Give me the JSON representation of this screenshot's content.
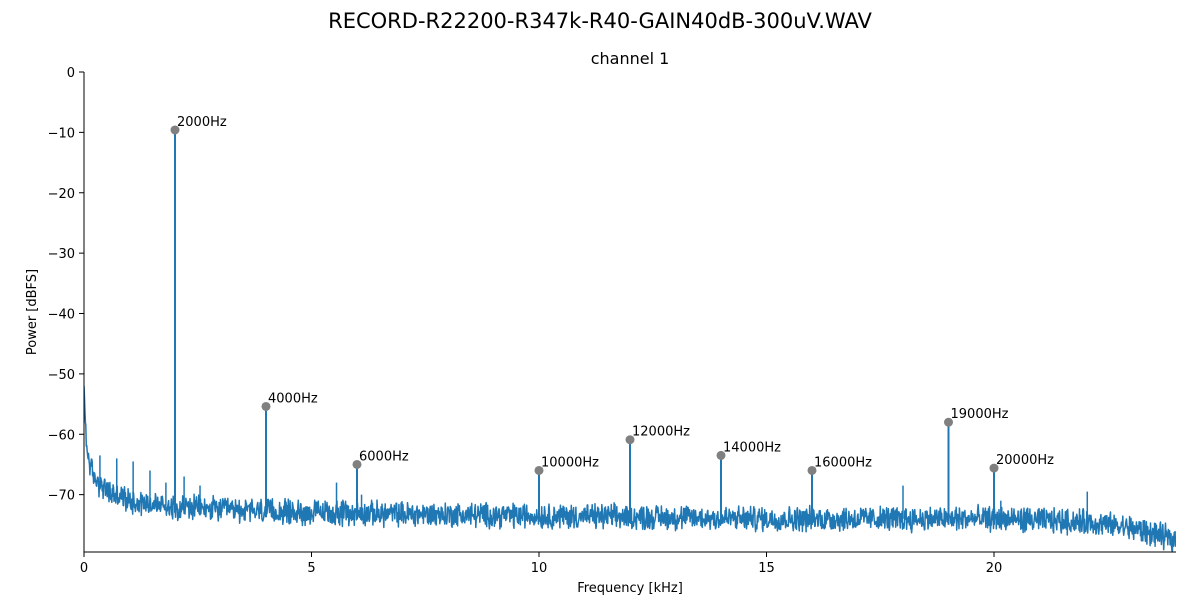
{
  "chart_data": {
    "type": "line",
    "suptitle": "RECORD-R22200-R347k-R40-GAIN40dB-300uV.WAV",
    "title": "channel 1",
    "xlabel": "Frequency [kHz]",
    "ylabel": "Power [dBFS]",
    "xlim": [
      0,
      24
    ],
    "ylim": [
      -79.5,
      0
    ],
    "xticks": [
      0,
      5,
      10,
      15,
      20
    ],
    "xtick_labels": [
      "0",
      "5",
      "10",
      "15",
      "20"
    ],
    "yticks": [
      0,
      -10,
      -20,
      -30,
      -40,
      -50,
      -60,
      -70
    ],
    "ytick_labels": [
      "0",
      "−10",
      "−20",
      "−30",
      "−40",
      "−50",
      "−60",
      "−70"
    ],
    "grid": false,
    "series_color": "#1f77b4",
    "marker_color": "#808080",
    "noise_floor": [
      {
        "x": 0.0,
        "y": -52
      },
      {
        "x": 0.05,
        "y": -62
      },
      {
        "x": 0.2,
        "y": -67
      },
      {
        "x": 0.5,
        "y": -69.5
      },
      {
        "x": 1.0,
        "y": -71
      },
      {
        "x": 2.0,
        "y": -72
      },
      {
        "x": 3.0,
        "y": -72.5
      },
      {
        "x": 5.0,
        "y": -73
      },
      {
        "x": 10.0,
        "y": -73.5
      },
      {
        "x": 15.0,
        "y": -74
      },
      {
        "x": 20.0,
        "y": -74
      },
      {
        "x": 22.0,
        "y": -74.5
      },
      {
        "x": 23.0,
        "y": -75.5
      },
      {
        "x": 24.0,
        "y": -77.5
      }
    ],
    "minor_spurs": [
      {
        "x": 0.35,
        "y": -63.5
      },
      {
        "x": 0.72,
        "y": -64
      },
      {
        "x": 1.08,
        "y": -64.5
      },
      {
        "x": 1.45,
        "y": -66
      },
      {
        "x": 1.8,
        "y": -68
      },
      {
        "x": 2.2,
        "y": -67
      },
      {
        "x": 2.55,
        "y": -68.5
      },
      {
        "x": 5.55,
        "y": -68
      },
      {
        "x": 6.1,
        "y": -70
      },
      {
        "x": 18.0,
        "y": -68.5
      },
      {
        "x": 20.15,
        "y": -71
      },
      {
        "x": 22.05,
        "y": -69.5
      }
    ],
    "peaks": [
      {
        "x": 2.0,
        "y": -9.6,
        "label": "2000Hz"
      },
      {
        "x": 4.0,
        "y": -55.4,
        "label": "4000Hz"
      },
      {
        "x": 6.0,
        "y": -65.0,
        "label": "6000Hz"
      },
      {
        "x": 10.0,
        "y": -66.0,
        "label": "10000Hz"
      },
      {
        "x": 12.0,
        "y": -60.9,
        "label": "12000Hz"
      },
      {
        "x": 14.0,
        "y": -63.5,
        "label": "14000Hz"
      },
      {
        "x": 16.0,
        "y": -66.0,
        "label": "16000Hz"
      },
      {
        "x": 19.0,
        "y": -58.0,
        "label": "19000Hz"
      },
      {
        "x": 20.0,
        "y": -65.6,
        "label": "20000Hz"
      }
    ]
  }
}
